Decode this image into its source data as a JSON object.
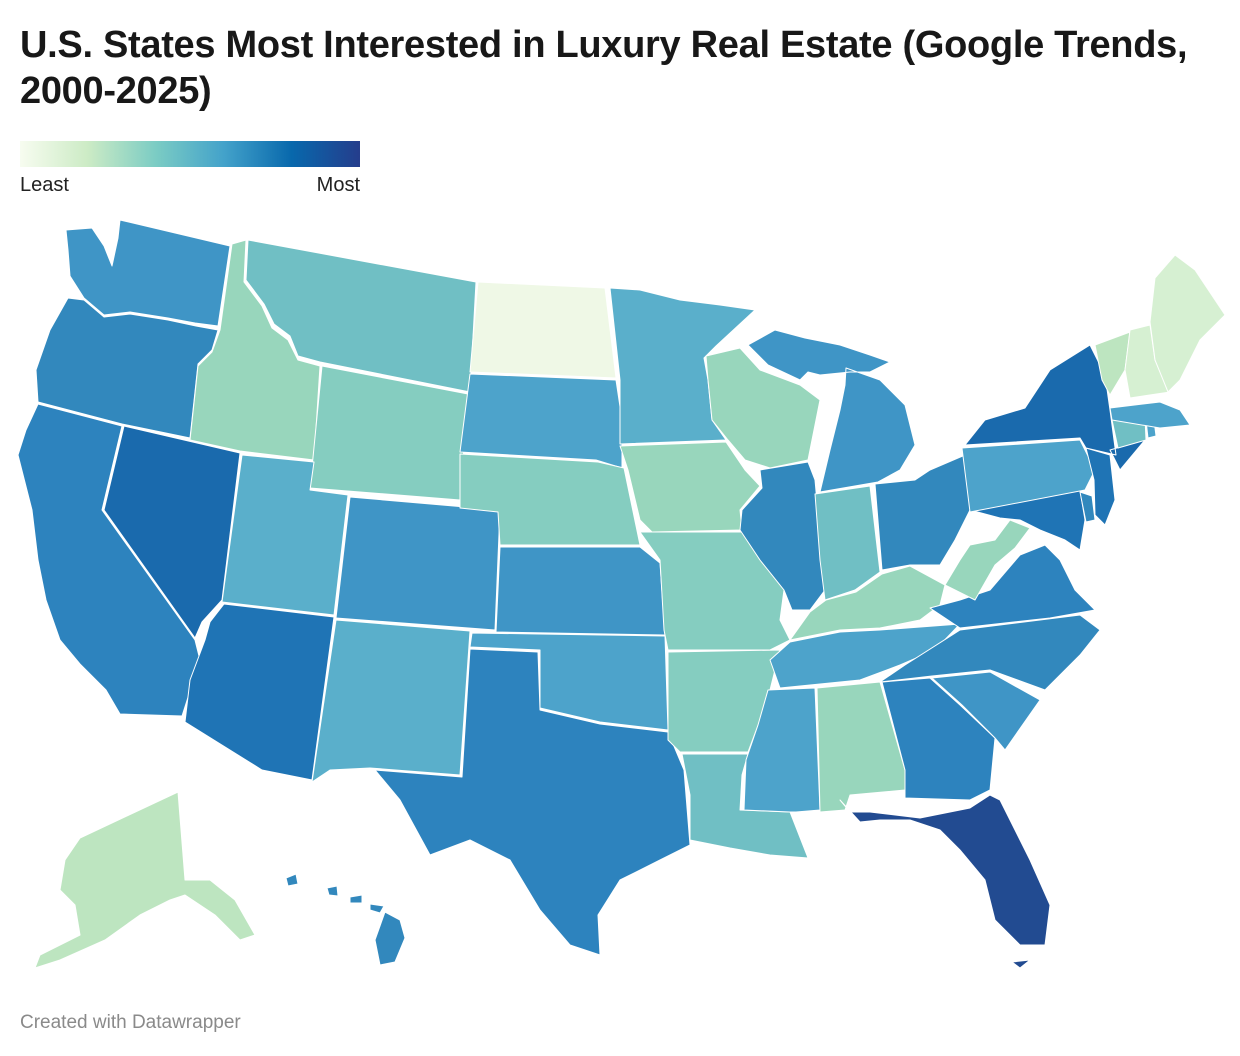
{
  "title": "U.S. States Most Interested in Luxury Real Estate (Google Trends, 2000-2025)",
  "legend": {
    "min_label": "Least",
    "max_label": "Most",
    "gradient": [
      "#f7fcf0",
      "#ccebc5",
      "#7bccc4",
      "#43a2ca",
      "#0868ac",
      "#253d8c"
    ]
  },
  "footer": "Created with Datawrapper",
  "map_data": {
    "type": "choropleth",
    "scale": "sequential",
    "color_key": {
      "1": "#eff8e6",
      "2": "#d6f0d2",
      "3": "#bde5c0",
      "4": "#98d6bc",
      "5": "#85cdc0",
      "6": "#70bfc4",
      "7": "#5aafcb",
      "8": "#4da3cb",
      "9": "#3f95c6",
      "10": "#3288bd",
      "11": "#2d83be",
      "12": "#1f74b5",
      "13": "#1a6aad",
      "14": "#224b91"
    },
    "regions": [
      {
        "id": "WA",
        "name": "Washington",
        "level": 9
      },
      {
        "id": "OR",
        "name": "Oregon",
        "level": 10
      },
      {
        "id": "CA",
        "name": "California",
        "level": 11
      },
      {
        "id": "NV",
        "name": "Nevada",
        "level": 13
      },
      {
        "id": "ID",
        "name": "Idaho",
        "level": 4
      },
      {
        "id": "MT",
        "name": "Montana",
        "level": 6
      },
      {
        "id": "WY",
        "name": "Wyoming",
        "level": 5
      },
      {
        "id": "UT",
        "name": "Utah",
        "level": 7
      },
      {
        "id": "AZ",
        "name": "Arizona",
        "level": 12
      },
      {
        "id": "CO",
        "name": "Colorado",
        "level": 9
      },
      {
        "id": "NM",
        "name": "New Mexico",
        "level": 7
      },
      {
        "id": "ND",
        "name": "North Dakota",
        "level": 1
      },
      {
        "id": "SD",
        "name": "South Dakota",
        "level": 8
      },
      {
        "id": "NE",
        "name": "Nebraska",
        "level": 5
      },
      {
        "id": "KS",
        "name": "Kansas",
        "level": 9
      },
      {
        "id": "OK",
        "name": "Oklahoma",
        "level": 8
      },
      {
        "id": "TX",
        "name": "Texas",
        "level": 11
      },
      {
        "id": "MN",
        "name": "Minnesota",
        "level": 7
      },
      {
        "id": "IA",
        "name": "Iowa",
        "level": 4
      },
      {
        "id": "MO",
        "name": "Missouri",
        "level": 5
      },
      {
        "id": "AR",
        "name": "Arkansas",
        "level": 5
      },
      {
        "id": "LA",
        "name": "Louisiana",
        "level": 6
      },
      {
        "id": "WI",
        "name": "Wisconsin",
        "level": 4
      },
      {
        "id": "IL",
        "name": "Illinois",
        "level": 10
      },
      {
        "id": "MI",
        "name": "Michigan",
        "level": 9
      },
      {
        "id": "IN",
        "name": "Indiana",
        "level": 6
      },
      {
        "id": "OH",
        "name": "Ohio",
        "level": 10
      },
      {
        "id": "KY",
        "name": "Kentucky",
        "level": 4
      },
      {
        "id": "TN",
        "name": "Tennessee",
        "level": 8
      },
      {
        "id": "MS",
        "name": "Mississippi",
        "level": 8
      },
      {
        "id": "AL",
        "name": "Alabama",
        "level": 4
      },
      {
        "id": "GA",
        "name": "Georgia",
        "level": 11
      },
      {
        "id": "FL",
        "name": "Florida",
        "level": 14
      },
      {
        "id": "SC",
        "name": "South Carolina",
        "level": 9
      },
      {
        "id": "NC",
        "name": "North Carolina",
        "level": 10
      },
      {
        "id": "VA",
        "name": "Virginia",
        "level": 11
      },
      {
        "id": "WV",
        "name": "West Virginia",
        "level": 4
      },
      {
        "id": "MD",
        "name": "Maryland",
        "level": 12
      },
      {
        "id": "DE",
        "name": "Delaware",
        "level": 10
      },
      {
        "id": "PA",
        "name": "Pennsylvania",
        "level": 8
      },
      {
        "id": "NJ",
        "name": "New Jersey",
        "level": 12
      },
      {
        "id": "NY",
        "name": "New York",
        "level": 13
      },
      {
        "id": "CT",
        "name": "Connecticut",
        "level": 6
      },
      {
        "id": "RI",
        "name": "Rhode Island",
        "level": 8
      },
      {
        "id": "MA",
        "name": "Massachusetts",
        "level": 8
      },
      {
        "id": "VT",
        "name": "Vermont",
        "level": 3
      },
      {
        "id": "NH",
        "name": "New Hampshire",
        "level": 2
      },
      {
        "id": "ME",
        "name": "Maine",
        "level": 2
      },
      {
        "id": "AK",
        "name": "Alaska",
        "level": 3
      },
      {
        "id": "HI",
        "name": "Hawaii",
        "level": 10
      }
    ]
  }
}
